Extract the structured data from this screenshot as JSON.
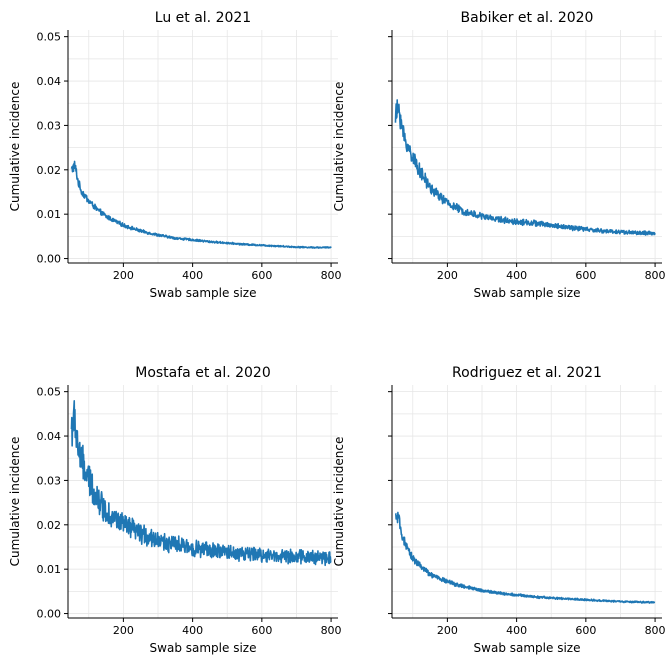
{
  "colors": {
    "series": "#1f77b4",
    "grid": "#e6e6e6"
  },
  "chart_data": [
    {
      "type": "line",
      "title": "Lu et al. 2021",
      "xlabel": "Swab sample size",
      "ylabel": "Cumulative incidence",
      "xlim": [
        40,
        820
      ],
      "ylim": [
        -0.001,
        0.0515
      ],
      "xticks": [
        200,
        400,
        600,
        800
      ],
      "yticks": [
        0.0,
        0.01,
        0.02,
        0.03,
        0.04,
        0.05
      ],
      "ytick_labels": [
        "0.00",
        "0.01",
        "0.02",
        "0.03",
        "0.04",
        "0.05"
      ],
      "show_ytick_labels": true,
      "grid": true,
      "x": [
        50,
        60,
        70,
        80,
        100,
        125,
        150,
        200,
        250,
        300,
        350,
        400,
        450,
        500,
        550,
        600,
        650,
        700,
        750,
        800
      ],
      "y": [
        0.02,
        0.021,
        0.017,
        0.015,
        0.013,
        0.011,
        0.0095,
        0.0075,
        0.0062,
        0.0053,
        0.0046,
        0.0042,
        0.0038,
        0.0035,
        0.0032,
        0.003,
        0.0028,
        0.0026,
        0.0025,
        0.0025
      ],
      "noise": 0.05
    },
    {
      "type": "line",
      "title": "Babiker et al. 2020",
      "xlabel": "Swab sample size",
      "ylabel": "Cumulative incidence",
      "xlim": [
        40,
        820
      ],
      "ylim": [
        -0.001,
        0.0515
      ],
      "xticks": [
        200,
        400,
        600,
        800
      ],
      "yticks": [
        0.0,
        0.01,
        0.02,
        0.03,
        0.04,
        0.05
      ],
      "ytick_labels": [
        "",
        "",
        "",
        "",
        "",
        ""
      ],
      "show_ytick_labels": false,
      "grid": true,
      "x": [
        50,
        60,
        70,
        80,
        100,
        125,
        150,
        200,
        250,
        300,
        350,
        400,
        450,
        500,
        550,
        600,
        650,
        700,
        750,
        800
      ],
      "y": [
        0.032,
        0.034,
        0.029,
        0.026,
        0.023,
        0.019,
        0.016,
        0.0125,
        0.0105,
        0.0095,
        0.0088,
        0.0083,
        0.008,
        0.0075,
        0.007,
        0.0066,
        0.0062,
        0.006,
        0.0058,
        0.0056
      ],
      "noise": 0.07
    },
    {
      "type": "line",
      "title": "Mostafa et al. 2020",
      "xlabel": "Swab sample size",
      "ylabel": "Cumulative incidence",
      "xlim": [
        40,
        820
      ],
      "ylim": [
        -0.001,
        0.0515
      ],
      "xticks": [
        200,
        400,
        600,
        800
      ],
      "yticks": [
        0.0,
        0.01,
        0.02,
        0.03,
        0.04,
        0.05
      ],
      "ytick_labels": [
        "0.00",
        "0.01",
        "0.02",
        "0.03",
        "0.04",
        "0.05"
      ],
      "show_ytick_labels": true,
      "grid": true,
      "x": [
        50,
        60,
        70,
        80,
        100,
        125,
        150,
        200,
        250,
        300,
        350,
        400,
        450,
        500,
        550,
        600,
        650,
        700,
        750,
        800
      ],
      "y": [
        0.042,
        0.043,
        0.037,
        0.034,
        0.03,
        0.026,
        0.023,
        0.02,
        0.018,
        0.0165,
        0.0155,
        0.0148,
        0.0142,
        0.0138,
        0.0135,
        0.0132,
        0.013,
        0.0128,
        0.0127,
        0.0126
      ],
      "noise": 0.11
    },
    {
      "type": "line",
      "title": "Rodriguez et al. 2021",
      "xlabel": "Swab sample size",
      "ylabel": "Cumulative incidence",
      "xlim": [
        40,
        820
      ],
      "ylim": [
        -0.001,
        0.0515
      ],
      "xticks": [
        200,
        400,
        600,
        800
      ],
      "yticks": [
        0.0,
        0.01,
        0.02,
        0.03,
        0.04,
        0.05
      ],
      "ytick_labels": [
        "",
        "",
        "",
        "",
        "",
        ""
      ],
      "show_ytick_labels": false,
      "grid": true,
      "x": [
        50,
        60,
        70,
        80,
        100,
        125,
        150,
        200,
        250,
        300,
        350,
        400,
        450,
        500,
        550,
        600,
        650,
        700,
        750,
        800
      ],
      "y": [
        0.022,
        0.021,
        0.0175,
        0.015,
        0.0125,
        0.0105,
        0.0088,
        0.0072,
        0.006,
        0.0052,
        0.0046,
        0.0042,
        0.0038,
        0.0035,
        0.0033,
        0.0031,
        0.0029,
        0.0027,
        0.0026,
        0.0025
      ],
      "noise": 0.06
    }
  ]
}
